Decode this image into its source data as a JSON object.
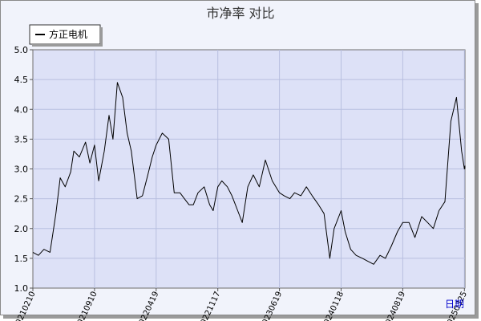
{
  "chart_data": {
    "type": "line",
    "title": "市净率  对比",
    "legend": {
      "placement": "top-left",
      "entries": [
        "方正电机"
      ]
    },
    "xlabel": "日期",
    "ylabel": "",
    "ylim": [
      1.0,
      5.0
    ],
    "yticks": [
      "1.0",
      "1.5",
      "2.0",
      "2.5",
      "3.0",
      "3.5",
      "4.0",
      "4.5",
      "5.0"
    ],
    "xticks": [
      "20210210",
      "20210910",
      "20220419",
      "20221117",
      "20230619",
      "20240118",
      "20240819",
      "20250325"
    ],
    "grid": true,
    "colors": {
      "plot_bg": "#dde1f7",
      "line": "#000000",
      "grid": "#b8bfe0",
      "frame_bg": "#f1f3fb",
      "xlabel": "#0000cc"
    },
    "series": [
      {
        "name": "方正电机",
        "x": [
          "20210210",
          "20210301",
          "20210320",
          "20210410",
          "20210430",
          "20210515",
          "20210601",
          "20210620",
          "20210701",
          "20210720",
          "20210810",
          "20210825",
          "20210910",
          "20210925",
          "20211015",
          "20211101",
          "20211115",
          "20211201",
          "20211220",
          "20220105",
          "20220120",
          "20220210",
          "20220301",
          "20220320",
          "20220405",
          "20220419",
          "20220510",
          "20220601",
          "20220620",
          "20220710",
          "20220725",
          "20220810",
          "20220825",
          "20220910",
          "20221001",
          "20221020",
          "20221101",
          "20221117",
          "20221201",
          "20221220",
          "20230105",
          "20230125",
          "20230210",
          "20230301",
          "20230320",
          "20230410",
          "20230501",
          "20230525",
          "20230619",
          "20230705",
          "20230725",
          "20230810",
          "20230901",
          "20230920",
          "20231010",
          "20231101",
          "20231120",
          "20231210",
          "20231225",
          "20240118",
          "20240201",
          "20240220",
          "20240310",
          "20240401",
          "20240420",
          "20240510",
          "20240601",
          "20240620",
          "20240710",
          "20240801",
          "20240819",
          "20240910",
          "20241001",
          "20241025",
          "20241115",
          "20241205",
          "20241225",
          "20250115",
          "20250205",
          "20250225",
          "20250315",
          "20250325",
          "20250405",
          "20250415"
        ],
        "values": [
          1.6,
          1.55,
          1.65,
          1.6,
          2.25,
          2.85,
          2.7,
          2.95,
          3.3,
          3.2,
          3.45,
          3.1,
          3.4,
          2.8,
          3.3,
          3.9,
          3.5,
          4.45,
          4.2,
          3.6,
          3.3,
          2.5,
          2.55,
          2.9,
          3.2,
          3.4,
          3.6,
          3.5,
          2.6,
          2.6,
          2.5,
          2.4,
          2.4,
          2.6,
          2.7,
          2.4,
          2.3,
          2.7,
          2.8,
          2.7,
          2.55,
          2.3,
          2.1,
          2.7,
          2.9,
          2.7,
          3.15,
          2.8,
          2.6,
          2.55,
          2.5,
          2.6,
          2.55,
          2.7,
          2.55,
          2.4,
          2.25,
          1.5,
          2.0,
          2.3,
          1.95,
          1.65,
          1.55,
          1.5,
          1.45,
          1.4,
          1.55,
          1.5,
          1.7,
          1.95,
          2.1,
          2.1,
          1.85,
          2.2,
          2.1,
          2.0,
          2.3,
          2.45,
          3.8,
          4.2,
          3.3,
          3.0,
          3.05,
          3.0
        ]
      }
    ]
  }
}
